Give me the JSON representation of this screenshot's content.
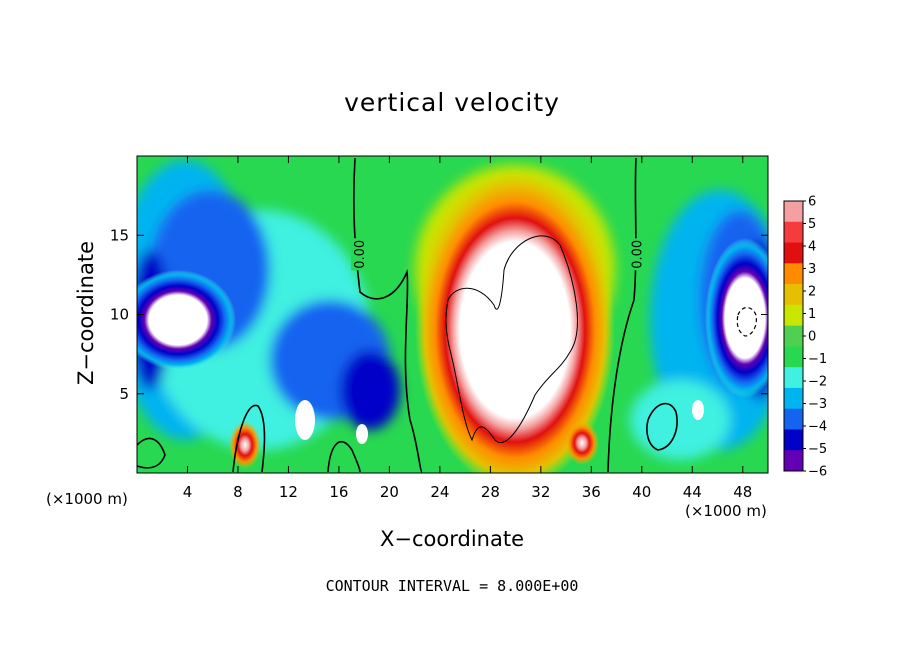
{
  "chart_data": {
    "type": "heatmap",
    "title": "vertical velocity",
    "xlabel": "X−coordinate",
    "ylabel": "Z−coordinate",
    "x_unit_left": "(×1000 m)",
    "x_unit_right": "(×1000 m)",
    "footer": "CONTOUR INTERVAL = 8.000E+00",
    "xlim": [
      0,
      50
    ],
    "ylim": [
      0,
      20
    ],
    "x_ticks": [
      4,
      8,
      12,
      16,
      20,
      24,
      28,
      32,
      36,
      40,
      44,
      48
    ],
    "x_tick_labels": [
      "4",
      "8",
      "12",
      "16",
      "20",
      "24",
      "28",
      "32",
      "36",
      "40",
      "44",
      "48"
    ],
    "y_ticks": [
      5,
      10,
      15
    ],
    "y_tick_labels": [
      "5",
      "10",
      "15"
    ],
    "colorbar": {
      "min": -6,
      "max": 6,
      "levels": [
        6,
        5,
        4,
        3,
        2,
        1,
        0,
        -1,
        -2,
        -3,
        -4,
        -5,
        -6
      ],
      "labels": [
        "6",
        "5",
        "4",
        "3",
        "2",
        "1",
        "0",
        "−1",
        "−2",
        "−3",
        "−4",
        "−5",
        "−6"
      ],
      "colors": [
        "#f4a0a0",
        "#f43c3c",
        "#e01010",
        "#ff8c00",
        "#e6c000",
        "#c8e600",
        "#50d050",
        "#28d850",
        "#40f0e0",
        "#00b4f0",
        "#1464f0",
        "#0000c8",
        "#6400b4"
      ]
    },
    "contour_labels": [
      {
        "text": "0.00",
        "x": 17.6,
        "y": 13.8
      },
      {
        "text": "0.00",
        "x": 39.6,
        "y": 13.8
      }
    ],
    "features": [
      {
        "kind": "updraft",
        "x": 30.5,
        "y": 9,
        "peak": 8
      },
      {
        "kind": "updraft",
        "x": 8.5,
        "y": 1.5,
        "peak": 6
      },
      {
        "kind": "updraft",
        "x": 35.5,
        "y": 1.5,
        "peak": 6
      },
      {
        "kind": "downdraft",
        "x": 3.5,
        "y": 10,
        "peak": -8
      },
      {
        "kind": "downdraft",
        "x": 47.5,
        "y": 9,
        "peak": -8
      }
    ]
  }
}
